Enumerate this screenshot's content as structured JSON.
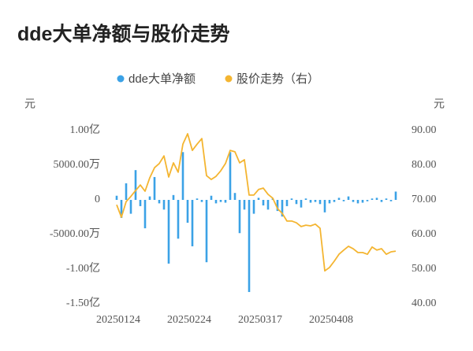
{
  "chart_data": {
    "type": "bar-line",
    "title": "dde大单净额与股价走势",
    "y_label": "元",
    "y2_label": "元",
    "categories": [
      "20250124",
      null,
      null,
      null,
      null,
      null,
      null,
      null,
      null,
      null,
      null,
      null,
      null,
      null,
      null,
      "20250224",
      null,
      null,
      null,
      null,
      null,
      null,
      null,
      null,
      null,
      null,
      null,
      null,
      null,
      null,
      "20250317",
      null,
      null,
      null,
      null,
      null,
      null,
      null,
      null,
      null,
      null,
      null,
      null,
      null,
      null,
      "20250408",
      null,
      null,
      null,
      null,
      null,
      null,
      null,
      null,
      null,
      null,
      null,
      null,
      null,
      null
    ],
    "series": [
      {
        "name": "dde大单净额",
        "type": "bar",
        "color": "#3ba2e6",
        "values": [
          6000000,
          -26000000,
          24000000,
          -20000000,
          43000000,
          -9000000,
          -41000000,
          5000000,
          33000000,
          -5000000,
          -14000000,
          -92000000,
          7000000,
          -56000000,
          69000000,
          -33000000,
          -67000000,
          2000000,
          -3000000,
          -90000000,
          6000000,
          -5000000,
          -3000000,
          -4000000,
          69000000,
          10000000,
          -48000000,
          -14000000,
          -133000000,
          -20000000,
          3000000,
          -8000000,
          -14000000,
          2000000,
          -16000000,
          -24000000,
          -9000000,
          2000000,
          -6000000,
          -11000000,
          2000000,
          -4000000,
          -3000000,
          -6000000,
          -18000000,
          -5000000,
          -3000000,
          3000000,
          -2000000,
          5000000,
          -3000000,
          -5000000,
          -4000000,
          -2000000,
          2000000,
          3000000,
          -3000000,
          2000000,
          -2000000,
          12000000
        ]
      },
      {
        "name": "股价走势（右）",
        "type": "line",
        "axis": "y2",
        "color": "#f4b531",
        "values": [
          68.6,
          65,
          69.5,
          71,
          72.7,
          74.3,
          72.5,
          76.4,
          79.3,
          80.5,
          82.7,
          76.6,
          80.7,
          78,
          86.1,
          89.1,
          84.3,
          86.1,
          87.7,
          77,
          75.9,
          76.8,
          78.4,
          80.5,
          84.3,
          83.9,
          80.7,
          81.6,
          71.4,
          71.4,
          73,
          73.4,
          71.6,
          70.5,
          67.5,
          66.1,
          63.9,
          63.9,
          63.4,
          62.3,
          62.7,
          62.5,
          63,
          61.8,
          49.5,
          50.5,
          52.3,
          54.3,
          55.5,
          56.6,
          55.9,
          54.8,
          54.8,
          54.3,
          56.4,
          55.5,
          55.9,
          54.3,
          55,
          55.2
        ]
      }
    ],
    "ylim": [
      -150000000,
      100000000
    ],
    "yticks": [
      {
        "value": 100000000,
        "label": "1.00亿"
      },
      {
        "value": 50000000,
        "label": "5000.00万"
      },
      0,
      {
        "value": -50000000,
        "label": "-5000.00万"
      },
      {
        "value": -100000000,
        "label": "-1.00亿"
      },
      {
        "value": -150000000,
        "label": "-1.50亿"
      }
    ],
    "y2lim": [
      40,
      90
    ],
    "y2ticks": [
      {
        "value": 90,
        "label": "90.00"
      },
      {
        "value": 80,
        "label": "80.00"
      },
      {
        "value": 70,
        "label": "70.00"
      },
      {
        "value": 60,
        "label": "60.00"
      },
      {
        "value": 50,
        "label": "50.00"
      },
      {
        "value": 40,
        "label": "40.00"
      }
    ]
  }
}
